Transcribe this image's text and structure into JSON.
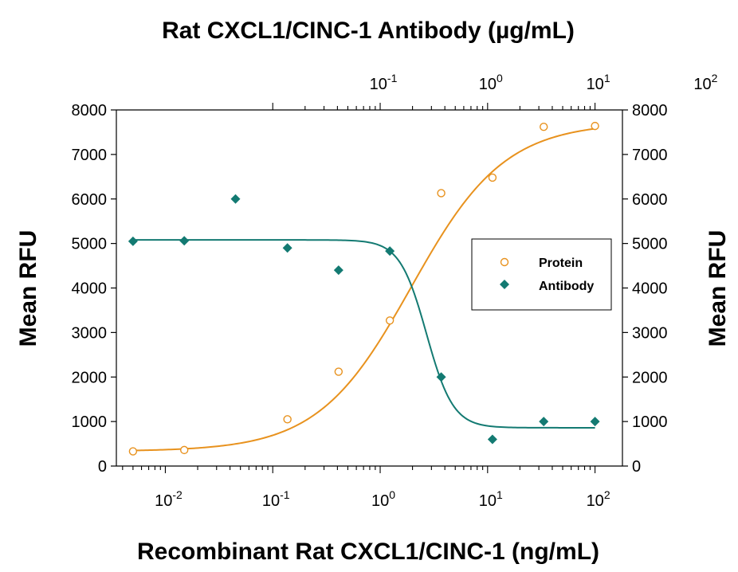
{
  "chart_data": {
    "type": "scatter",
    "title": "Rat CXCL1/CINC-1 Antibody (µg/mL)",
    "xlabel": "Recombinant Rat CXCL1/CINC-1 (ng/mL)",
    "ylabel": "Mean RFU",
    "ylabel_right": "Mean RFU",
    "xscale": "log",
    "xlim": [
      0.0035,
      180
    ],
    "ylim": [
      0,
      8000
    ],
    "x_ticks": [
      {
        "value": 0.01,
        "base": "10",
        "exp": "-2"
      },
      {
        "value": 0.1,
        "base": "10",
        "exp": "-1"
      },
      {
        "value": 1,
        "base": "10",
        "exp": "0"
      },
      {
        "value": 10,
        "base": "10",
        "exp": "1"
      },
      {
        "value": 100,
        "base": "10",
        "exp": "2"
      }
    ],
    "top_axis": {
      "scale": "log",
      "x_per_bottom_x": 0.1,
      "ticks": [
        {
          "value": 0.1,
          "base": "10",
          "exp": "-1"
        },
        {
          "value": 1,
          "base": "10",
          "exp": "0"
        },
        {
          "value": 10,
          "base": "10",
          "exp": "1"
        },
        {
          "value": 100,
          "base": "10",
          "exp": "2"
        }
      ]
    },
    "y_ticks": [
      "0",
      "1000",
      "2000",
      "3000",
      "4000",
      "5000",
      "6000",
      "7000",
      "8000"
    ],
    "y_ticks_right": [
      "0",
      "1000",
      "2000",
      "3000",
      "4000",
      "5000",
      "6000",
      "7000",
      "8000"
    ],
    "legend": {
      "position": "right-middle"
    },
    "series": [
      {
        "name": "Protein",
        "marker": "open-circle",
        "color": "#e8921e",
        "x": [
          0.005,
          0.015,
          0.137,
          0.41,
          1.23,
          3.7,
          11.1,
          33.3,
          100
        ],
        "y": [
          330,
          360,
          1050,
          2120,
          3270,
          6130,
          6480,
          7620,
          7640
        ],
        "fit": {
          "model": "4PL",
          "bottom": 330,
          "top": 7720,
          "ec50": 1.95,
          "hill": 1.0
        }
      },
      {
        "name": "Antibody",
        "marker": "filled-diamond",
        "color": "#137a72",
        "x": [
          0.005,
          0.015,
          0.045,
          0.137,
          0.41,
          1.23,
          3.7,
          11.1,
          33.3,
          100
        ],
        "y": [
          5050,
          5060,
          6000,
          4900,
          4400,
          4830,
          2000,
          600,
          1000,
          1000
        ],
        "fit": {
          "model": "4PL",
          "bottom": 860,
          "top": 5080,
          "ec50": 2.7,
          "hill": -3.5
        }
      }
    ]
  }
}
